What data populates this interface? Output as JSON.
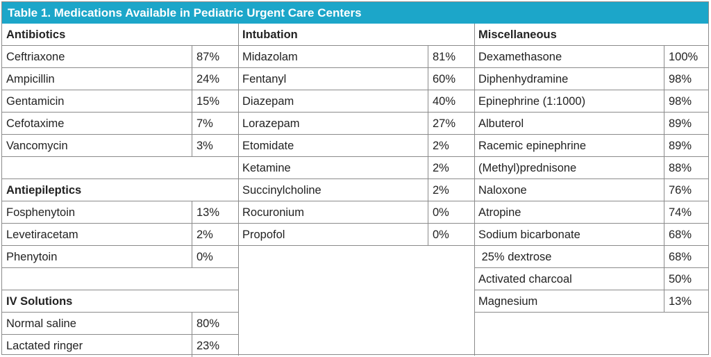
{
  "title": "Table 1. Medications Available in Pediatric Urgent Care Centers",
  "col1": {
    "antibiotics_heading": "Antibiotics",
    "antibiotics": [
      {
        "name": "Ceftriaxone",
        "pct": "87%"
      },
      {
        "name": "Ampicillin",
        "pct": "24%"
      },
      {
        "name": "Gentamicin",
        "pct": "15%"
      },
      {
        "name": "Cefotaxime",
        "pct": "7%"
      },
      {
        "name": "Vancomycin",
        "pct": "3%"
      }
    ],
    "antiepileptics_heading": "Antiepileptics",
    "antiepileptics": [
      {
        "name": "Fosphenytoin",
        "pct": "13%"
      },
      {
        "name": "Levetiracetam",
        "pct": "2%"
      },
      {
        "name": "Phenytoin",
        "pct": "0%"
      }
    ],
    "iv_heading": "IV Solutions",
    "iv_solutions": [
      {
        "name": "Normal saline",
        "pct": "80%"
      },
      {
        "name": "Lactated ringer",
        "pct": "23%"
      }
    ]
  },
  "col2": {
    "intubation_heading": "Intubation",
    "intubation": [
      {
        "name": "Midazolam",
        "pct": "81%"
      },
      {
        "name": "Fentanyl",
        "pct": "60%"
      },
      {
        "name": "Diazepam",
        "pct": "40%"
      },
      {
        "name": "Lorazepam",
        "pct": "27%"
      },
      {
        "name": "Etomidate",
        "pct": "2%"
      },
      {
        "name": "Ketamine",
        "pct": "2%"
      },
      {
        "name": "Succinylcholine",
        "pct": "2%"
      },
      {
        "name": "Rocuronium",
        "pct": "0%"
      },
      {
        "name": "Propofol",
        "pct": "0%"
      }
    ]
  },
  "col3": {
    "misc_heading": "Miscellaneous",
    "miscellaneous": [
      {
        "name": "Dexamethasone",
        "pct": "100%"
      },
      {
        "name": "Diphenhydramine",
        "pct": "98%"
      },
      {
        "name": "Epinephrine (1:1000)",
        "pct": "98%"
      },
      {
        "name": "Albuterol",
        "pct": "89%"
      },
      {
        "name": "Racemic epinephrine",
        "pct": "89%"
      },
      {
        "name": "(Methyl)prednisone",
        "pct": "88%"
      },
      {
        "name": "Naloxone",
        "pct": "76%"
      },
      {
        "name": "Atropine",
        "pct": "74%"
      },
      {
        "name": "Sodium bicarbonate",
        "pct": "68%"
      },
      {
        "name": " 25% dextrose",
        "pct": "68%"
      },
      {
        "name": "Activated charcoal",
        "pct": "50%"
      },
      {
        "name": "Magnesium",
        "pct": "13%"
      }
    ]
  }
}
